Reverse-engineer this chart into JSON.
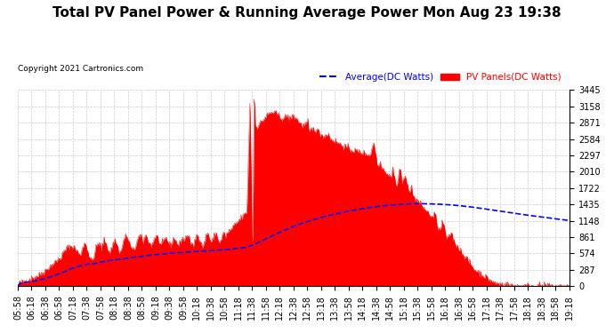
{
  "title": "Total PV Panel Power & Running Average Power Mon Aug 23 19:38",
  "copyright": "Copyright 2021 Cartronics.com",
  "legend_avg": "Average(DC Watts)",
  "legend_pv": "PV Panels(DC Watts)",
  "avg_color": "blue",
  "pv_color": "red",
  "bg_color": "#ffffff",
  "grid_color": "#cccccc",
  "yticks": [
    0.0,
    287.1,
    574.1,
    861.2,
    1148.3,
    1435.4,
    1722.4,
    2009.5,
    2296.6,
    2583.6,
    2870.7,
    3157.8,
    3444.9
  ],
  "ymax": 3444.9,
  "ymin": 0.0,
  "title_fontsize": 11,
  "tick_fontsize": 7
}
